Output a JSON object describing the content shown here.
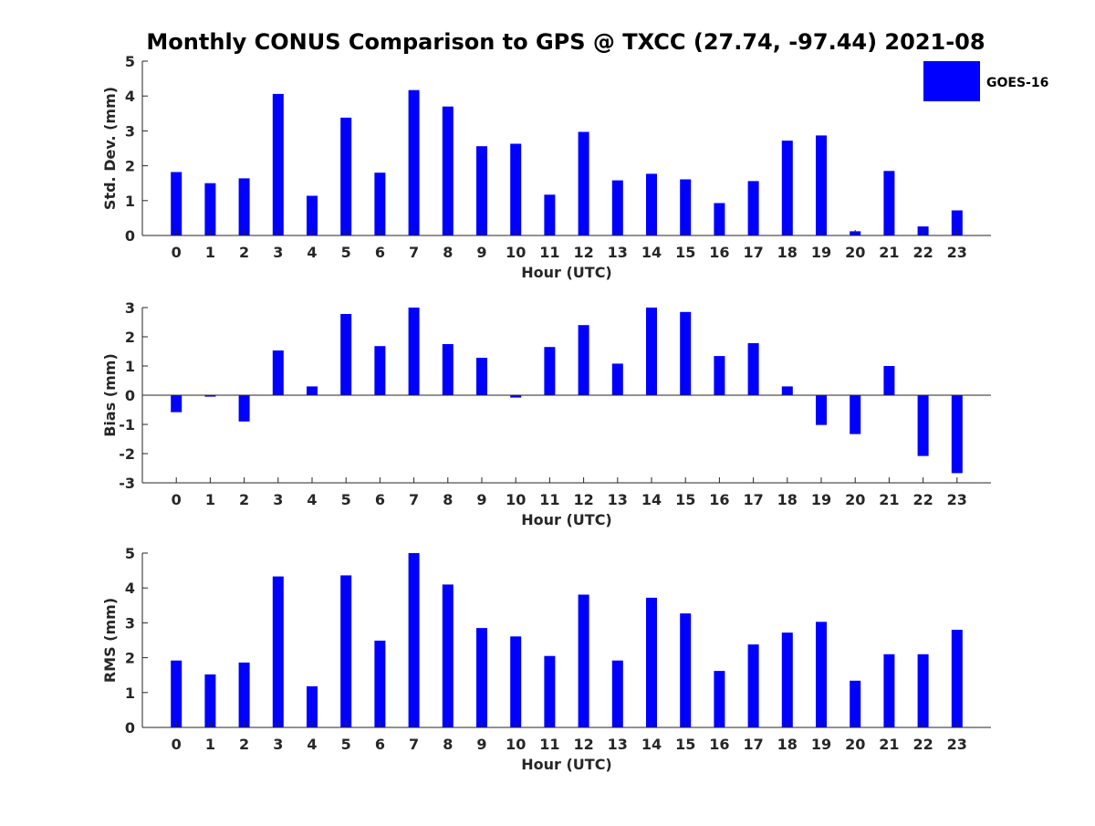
{
  "chart_data": {
    "title": "Monthly CONUS Comparison to GPS @ TXCC (27.74, -97.44) 2021-08",
    "legend": {
      "label": "GOES-16",
      "color": "#0000ff",
      "placement": "top-right"
    },
    "panels": [
      {
        "type": "bar",
        "title": "",
        "xlabel": "Hour (UTC)",
        "ylabel": "Std. Dev. (mm)",
        "ylim": [
          0,
          5
        ],
        "yticks": [
          0,
          1,
          2,
          3,
          4,
          5
        ],
        "categories": [
          "0",
          "1",
          "2",
          "3",
          "4",
          "5",
          "6",
          "7",
          "8",
          "9",
          "10",
          "11",
          "12",
          "13",
          "14",
          "15",
          "16",
          "17",
          "18",
          "19",
          "20",
          "21",
          "22",
          "23"
        ],
        "series": [
          {
            "name": "GOES-16",
            "color": "#0000ff",
            "values": [
              1.82,
              1.5,
              1.64,
              4.06,
              1.14,
              3.38,
              1.8,
              4.17,
              3.7,
              2.56,
              2.63,
              1.17,
              2.97,
              1.58,
              1.77,
              1.61,
              0.93,
              1.56,
              2.72,
              2.87,
              0.12,
              1.85,
              0.26,
              0.72
            ]
          }
        ]
      },
      {
        "type": "bar",
        "title": "",
        "xlabel": "Hour (UTC)",
        "ylabel": "Bias (mm)",
        "ylim": [
          -3,
          3
        ],
        "yticks": [
          -3,
          -2,
          -1,
          0,
          1,
          2,
          3
        ],
        "categories": [
          "0",
          "1",
          "2",
          "3",
          "4",
          "5",
          "6",
          "7",
          "8",
          "9",
          "10",
          "11",
          "12",
          "13",
          "14",
          "15",
          "16",
          "17",
          "18",
          "19",
          "20",
          "21",
          "22",
          "23"
        ],
        "series": [
          {
            "name": "GOES-16",
            "color": "#0000ff",
            "values": [
              -0.58,
              -0.05,
              -0.9,
              1.53,
              0.3,
              2.78,
              1.68,
              3.0,
              1.75,
              1.28,
              -0.08,
              1.65,
              2.4,
              1.08,
              3.0,
              2.85,
              1.34,
              1.78,
              0.3,
              -1.02,
              -1.33,
              1.0,
              -2.08,
              -2.67
            ]
          }
        ]
      },
      {
        "type": "bar",
        "title": "",
        "xlabel": "Hour (UTC)",
        "ylabel": "RMS (mm)",
        "ylim": [
          0,
          5
        ],
        "yticks": [
          0,
          1,
          2,
          3,
          4,
          5
        ],
        "categories": [
          "0",
          "1",
          "2",
          "3",
          "4",
          "5",
          "6",
          "7",
          "8",
          "9",
          "10",
          "11",
          "12",
          "13",
          "14",
          "15",
          "16",
          "17",
          "18",
          "19",
          "20",
          "21",
          "22",
          "23"
        ],
        "series": [
          {
            "name": "GOES-16",
            "color": "#0000ff",
            "values": [
              1.92,
              1.52,
              1.86,
              4.33,
              1.18,
              4.36,
              2.49,
              5.0,
              4.1,
              2.85,
              2.61,
              2.05,
              3.81,
              1.92,
              3.72,
              3.27,
              1.62,
              2.38,
              2.72,
              3.03,
              1.34,
              2.1,
              2.1,
              2.8
            ]
          }
        ]
      }
    ]
  }
}
